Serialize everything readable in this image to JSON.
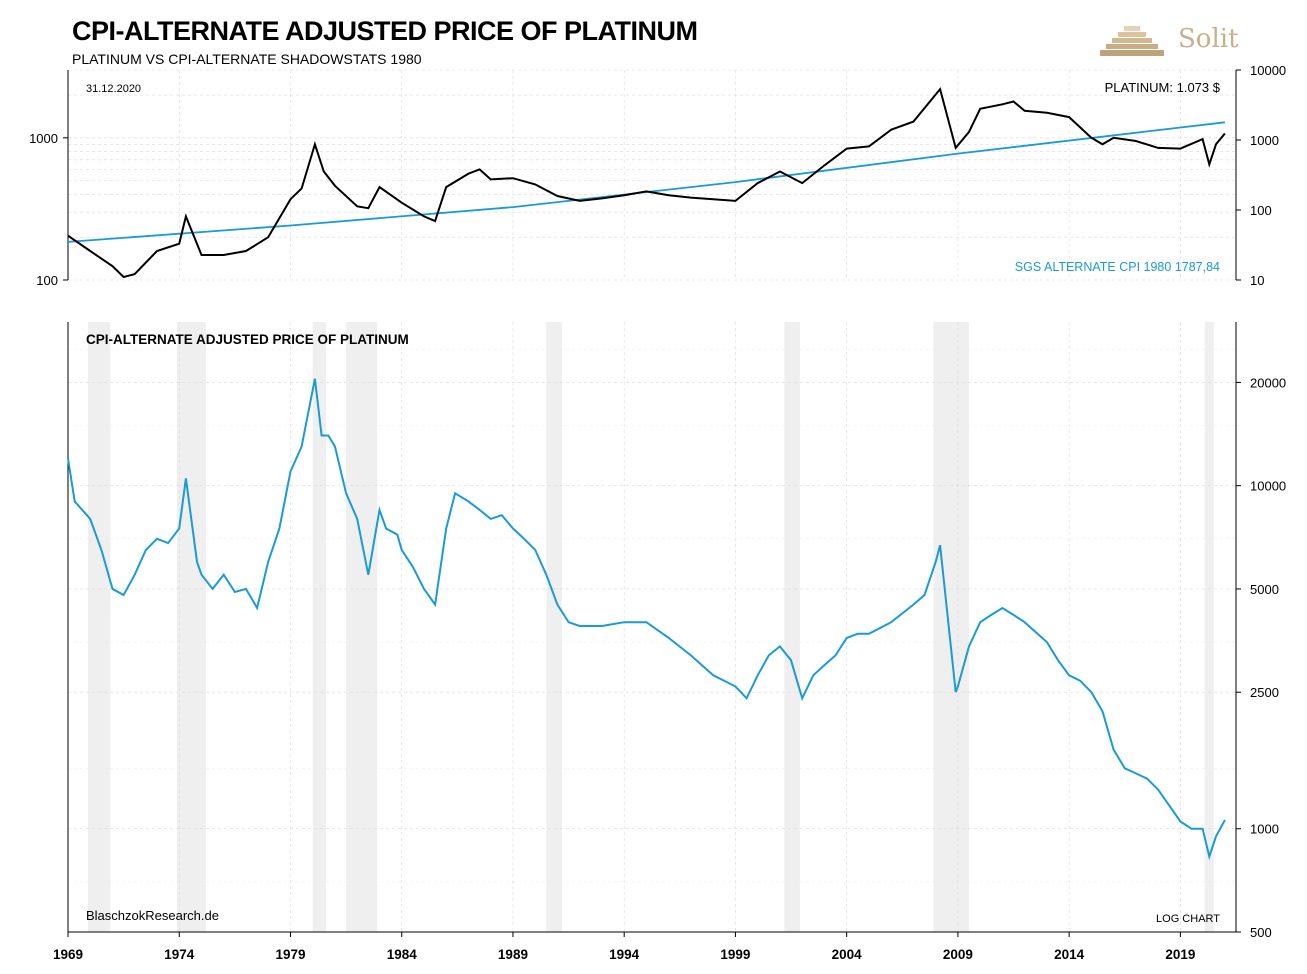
{
  "header": {
    "title": "CPI-ALTERNATE ADJUSTED PRICE OF PLATINUM",
    "subtitle": "PLATINUM VS CPI-ALTERNATE SHADOWSTATS 1980",
    "logo_text": "Solit"
  },
  "colors": {
    "platinum": "#000000",
    "cpi": "#1a9ad6",
    "adjusted": "#1a9ad6",
    "recession": "#efefef",
    "grid": "#d9d9d9"
  },
  "chart_data": [
    {
      "type": "line",
      "date_label": "31.12.2020",
      "annotation_right": "PLATINUM: 1.073 $",
      "annotation_cpi": "SGS ALTERNATE CPI 1980 1787,84",
      "yscale": "log",
      "ylim_left": [
        100,
        3000
      ],
      "ylim_right": [
        10,
        10000
      ],
      "yticks_left": [
        "1000",
        "100"
      ],
      "yticks_right": [
        "10000",
        "1000",
        "100",
        "10"
      ],
      "series": [
        {
          "name": "PLATINUM",
          "axis": "left",
          "x": [
            1969.0,
            1970.0,
            1971.0,
            1971.5,
            1972.0,
            1973.0,
            1974.0,
            1974.3,
            1975.0,
            1976.0,
            1977.0,
            1978.0,
            1979.0,
            1979.5,
            1980.1,
            1980.5,
            1981.0,
            1982.0,
            1982.5,
            1983.0,
            1984.0,
            1985.0,
            1985.5,
            1986.0,
            1987.0,
            1987.5,
            1988.0,
            1989.0,
            1990.0,
            1991.0,
            1992.0,
            1993.0,
            1994.0,
            1995.0,
            1996.0,
            1997.0,
            1998.0,
            1999.0,
            2000.0,
            2001.0,
            2002.0,
            2003.0,
            2004.0,
            2005.0,
            2006.0,
            2007.0,
            2008.2,
            2008.9,
            2009.5,
            2010.0,
            2011.0,
            2011.5,
            2012.0,
            2013.0,
            2014.0,
            2015.0,
            2015.5,
            2016.0,
            2017.0,
            2018.0,
            2019.0,
            2020.0,
            2020.3,
            2020.6,
            2021.0
          ],
          "y": [
            205,
            160,
            125,
            105,
            110,
            160,
            180,
            280,
            150,
            150,
            160,
            200,
            370,
            440,
            900,
            580,
            460,
            330,
            320,
            450,
            350,
            280,
            260,
            450,
            560,
            600,
            510,
            520,
            470,
            390,
            360,
            375,
            395,
            420,
            395,
            380,
            370,
            360,
            480,
            580,
            480,
            640,
            840,
            870,
            1140,
            1300,
            2200,
            850,
            1100,
            1600,
            1720,
            1800,
            1550,
            1500,
            1400,
            1000,
            900,
            1000,
            950,
            850,
            840,
            980,
            650,
            900,
            1073
          ]
        },
        {
          "name": "SGS ALTERNATE CPI 1980",
          "axis": "right",
          "x": [
            1969,
            1979,
            1989,
            1999,
            2009,
            2021
          ],
          "y": [
            35,
            60,
            110,
            250,
            640,
            1788
          ]
        }
      ]
    },
    {
      "type": "line",
      "title": "CPI-ALTERNATE ADJUSTED PRICE OF PLATINUM",
      "yscale": "log",
      "ylim": [
        500,
        30000
      ],
      "yticks": [
        "20000",
        "10000",
        "5000",
        "2500",
        "1000",
        "500"
      ],
      "xticks": [
        "1969",
        "1974",
        "1979",
        "1984",
        "1989",
        "1994",
        "1999",
        "2004",
        "2009",
        "2014",
        "2019"
      ],
      "xlim": [
        1969,
        2021.5
      ],
      "annotation_left": "BlaschzokResearch.de",
      "annotation_right": "LOG CHART",
      "recessions": [
        [
          1969.9,
          1970.9
        ],
        [
          1973.9,
          1975.2
        ],
        [
          1980.0,
          1980.6
        ],
        [
          1981.5,
          1982.9
        ],
        [
          1990.5,
          1991.2
        ],
        [
          2001.2,
          2001.9
        ],
        [
          2007.9,
          2009.5
        ],
        [
          2020.1,
          2020.5
        ]
      ],
      "series": [
        {
          "name": "",
          "x": [
            1969.0,
            1969.3,
            1970.0,
            1970.5,
            1971.0,
            1971.5,
            1972.0,
            1972.5,
            1973.0,
            1973.5,
            1974.0,
            1974.3,
            1974.8,
            1975.0,
            1975.5,
            1976.0,
            1976.5,
            1977.0,
            1977.5,
            1978.0,
            1978.5,
            1979.0,
            1979.5,
            1980.1,
            1980.4,
            1980.7,
            1981.0,
            1981.5,
            1982.0,
            1982.5,
            1983.0,
            1983.3,
            1983.8,
            1984.0,
            1984.5,
            1985.0,
            1985.5,
            1986.0,
            1986.4,
            1987.0,
            1987.5,
            1988.0,
            1988.5,
            1989.0,
            1989.5,
            1990.0,
            1990.5,
            1991.0,
            1991.5,
            1992.0,
            1993.0,
            1994.0,
            1995.0,
            1996.0,
            1997.0,
            1998.0,
            1999.0,
            1999.5,
            2000.0,
            2000.5,
            2001.0,
            2001.5,
            2002.0,
            2002.5,
            2003.0,
            2003.5,
            2004.0,
            2004.5,
            2005.0,
            2006.0,
            2007.0,
            2007.5,
            2008.0,
            2008.2,
            2008.9,
            2009.0,
            2009.5,
            2010.0,
            2010.5,
            2011.0,
            2011.5,
            2012.0,
            2013.0,
            2013.5,
            2014.0,
            2014.5,
            2015.0,
            2015.5,
            2016.0,
            2016.5,
            2017.0,
            2017.5,
            2018.0,
            2019.0,
            2019.5,
            2020.0,
            2020.3,
            2020.6,
            2021.0
          ],
          "y": [
            12000,
            9000,
            8000,
            6500,
            5000,
            4800,
            5500,
            6500,
            7000,
            6800,
            7500,
            10500,
            6000,
            5500,
            5000,
            5500,
            4900,
            5000,
            4400,
            6000,
            7500,
            11000,
            13000,
            20500,
            14000,
            14000,
            13000,
            9500,
            8000,
            5500,
            8500,
            7500,
            7200,
            6500,
            5800,
            5000,
            4500,
            7500,
            9500,
            9000,
            8500,
            8000,
            8200,
            7500,
            7000,
            6500,
            5500,
            4500,
            4000,
            3900,
            3900,
            4000,
            4000,
            3600,
            3200,
            2800,
            2600,
            2400,
            2800,
            3200,
            3400,
            3100,
            2400,
            2800,
            3000,
            3200,
            3600,
            3700,
            3700,
            4000,
            4500,
            4800,
            6000,
            6700,
            2500,
            2600,
            3400,
            4000,
            4200,
            4400,
            4200,
            4000,
            3500,
            3100,
            2800,
            2700,
            2500,
            2200,
            1700,
            1500,
            1450,
            1400,
            1300,
            1050,
            1000,
            1000,
            830,
            950,
            1060
          ]
        }
      ]
    }
  ]
}
